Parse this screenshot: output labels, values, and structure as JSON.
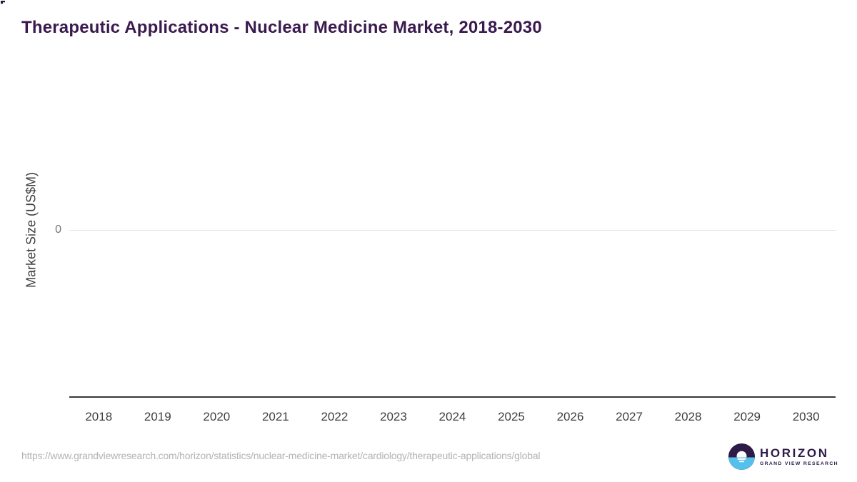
{
  "header": {
    "title": "Therapeutic Applications - Nuclear Medicine Market, 2018-2030"
  },
  "chart_data": {
    "type": "bar",
    "title": "Therapeutic Applications - Nuclear Medicine Market, 2018-2030",
    "categories": [
      "2018",
      "2019",
      "2020",
      "2021",
      "2022",
      "2023",
      "2024",
      "2025",
      "2026",
      "2027",
      "2028",
      "2029",
      "2030"
    ],
    "series": [],
    "values": [],
    "xlabel": "",
    "ylabel": "Market Size (US$M)",
    "y_ticks": [
      0
    ],
    "grid": "single horizontal gridline at 0",
    "legend": "none",
    "plot_empty": true
  },
  "axes": {
    "zero_tick_label": "0"
  },
  "footer": {
    "source_url": "https://www.grandviewresearch.com/horizon/statistics/nuclear-medicine-market/cardiology/therapeutic-applications/global",
    "logo": {
      "name": "HORIZON",
      "subtitle": "GRAND VIEW RESEARCH"
    }
  },
  "colors": {
    "title_purple": "#3a1a4e",
    "axis_text": "#3f3f3f",
    "tick_gray": "#757575",
    "gridline_gray": "#e2e2e2",
    "axis_line_dark": "#383838",
    "url_gray": "#b3b3b3",
    "logo_purple": "#2e1a47",
    "logo_blue": "#55c0eb"
  }
}
